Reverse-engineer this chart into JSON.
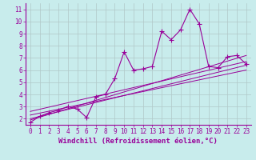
{
  "xlabel": "Windchill (Refroidissement éolien,°C)",
  "background_color": "#c8ecec",
  "line_color": "#990099",
  "grid_color": "#b0c8c8",
  "x_data": [
    0,
    1,
    2,
    3,
    4,
    5,
    6,
    7,
    8,
    9,
    10,
    11,
    12,
    13,
    14,
    15,
    16,
    17,
    18,
    19,
    20,
    21,
    22,
    23
  ],
  "y_data": [
    1.7,
    2.2,
    2.5,
    2.7,
    3.0,
    2.8,
    2.1,
    3.8,
    4.0,
    5.3,
    7.5,
    6.0,
    6.1,
    6.3,
    9.2,
    8.5,
    9.3,
    11.0,
    9.8,
    6.3,
    6.2,
    7.1,
    7.2,
    6.5
  ],
  "xlim": [
    -0.5,
    23.5
  ],
  "ylim": [
    1.5,
    11.5
  ],
  "yticks": [
    2,
    3,
    4,
    5,
    6,
    7,
    8,
    9,
    10,
    11
  ],
  "xticks": [
    0,
    1,
    2,
    3,
    4,
    5,
    6,
    7,
    8,
    9,
    10,
    11,
    12,
    13,
    14,
    15,
    16,
    17,
    18,
    19,
    20,
    21,
    22,
    23
  ],
  "regression_lines": [
    [
      0,
      2.0,
      23,
      6.4
    ],
    [
      0,
      2.3,
      23,
      6.0
    ],
    [
      0,
      2.6,
      23,
      6.7
    ],
    [
      0,
      1.9,
      23,
      7.2
    ]
  ],
  "xlabel_fontsize": 6.5,
  "tick_fontsize": 5.5,
  "marker": "+",
  "markersize": 4,
  "linewidth": 0.8,
  "reg_linewidth": 0.7
}
